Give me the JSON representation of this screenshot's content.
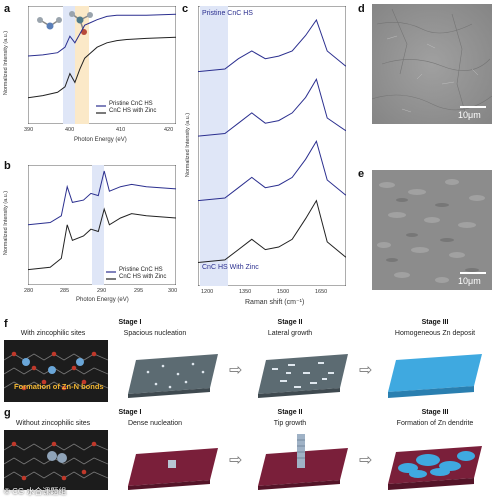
{
  "panels": {
    "a": {
      "letter": "a",
      "xlabel": "Photon Energy (eV)",
      "ylabel": "Normalized Intensity (a.u.)",
      "xticks": [
        "390",
        "400",
        "410",
        "420"
      ],
      "legend": [
        "Pristine CnC HS",
        "CnC HS with Zinc"
      ]
    },
    "b": {
      "letter": "b",
      "xlabel": "Photon Energy (eV)",
      "ylabel": "Normalized Intensity (a.u.)",
      "xticks": [
        "280",
        "285",
        "290",
        "295",
        "300"
      ],
      "legend": [
        "Pristine CnC HS",
        "CnC HS with Zinc"
      ]
    },
    "c": {
      "letter": "c",
      "xlabel": "Raman shift (cm⁻¹)",
      "ylabel": "Normalized Intensity (a.u.)",
      "xticks": [
        "1200",
        "1350",
        "1500",
        "1650"
      ],
      "top_label": "Pristine CnC HS",
      "bottom_label": "CnC HS With Zinc"
    },
    "d": {
      "letter": "d",
      "scale": "10μm"
    },
    "e": {
      "letter": "e",
      "scale": "10μm"
    }
  },
  "chart_data": [
    {
      "type": "line",
      "panel": "a",
      "xlabel": "Photon Energy (eV)",
      "ylabel": "Normalized Intensity (a.u.)",
      "xlim": [
        390,
        420
      ],
      "series": [
        {
          "name": "Pristine CnC HS",
          "x": [
            390,
            393,
            396,
            397.5,
            398.5,
            399.5,
            400.5,
            401.5,
            402.5,
            404,
            406,
            408,
            410,
            414,
            420
          ],
          "y": [
            0.6,
            0.61,
            0.63,
            0.68,
            0.78,
            0.72,
            0.8,
            0.88,
            0.9,
            0.93,
            0.96,
            0.97,
            0.97,
            0.97,
            0.98
          ]
        },
        {
          "name": "CnC HS with Zinc",
          "x": [
            390,
            393,
            396,
            397.5,
            398.5,
            399.5,
            400.5,
            401.5,
            402.5,
            404,
            406,
            408,
            410,
            414,
            420
          ],
          "y": [
            0.22,
            0.24,
            0.27,
            0.32,
            0.44,
            0.36,
            0.48,
            0.58,
            0.62,
            0.68,
            0.72,
            0.74,
            0.75,
            0.76,
            0.77
          ]
        }
      ]
    },
    {
      "type": "line",
      "panel": "b",
      "xlabel": "Photon Energy (eV)",
      "ylabel": "Normalized Intensity (a.u.)",
      "xlim": [
        280,
        300
      ],
      "series": [
        {
          "name": "Pristine CnC HS",
          "x": [
            280,
            283,
            284.5,
            285.3,
            286,
            287.5,
            288.5,
            289.5,
            290.3,
            291,
            292.5,
            294,
            296,
            300
          ],
          "y": [
            0.52,
            0.54,
            0.6,
            0.86,
            0.72,
            0.74,
            0.8,
            0.78,
            1.0,
            0.82,
            0.86,
            0.88,
            0.86,
            0.84
          ]
        },
        {
          "name": "CnC HS with Zinc",
          "x": [
            280,
            283,
            284.5,
            285.3,
            286,
            287.5,
            288.5,
            289.5,
            290.3,
            291,
            292.5,
            294,
            296,
            300
          ],
          "y": [
            0.12,
            0.14,
            0.22,
            0.52,
            0.38,
            0.42,
            0.48,
            0.46,
            0.66,
            0.52,
            0.58,
            0.62,
            0.6,
            0.58
          ]
        }
      ]
    },
    {
      "type": "line",
      "panel": "c",
      "xlabel": "Raman shift (cm⁻¹)",
      "ylabel": "Normalized Intensity (a.u.)",
      "xlim": [
        1150,
        1700
      ],
      "series": [
        {
          "name": "Pristine CnC HS",
          "x": [
            1150,
            1250,
            1300,
            1350,
            1400,
            1450,
            1500,
            1550,
            1590,
            1630,
            1700
          ],
          "y": [
            0.8,
            0.81,
            0.85,
            0.88,
            0.85,
            0.86,
            0.88,
            0.94,
            1.0,
            0.88,
            0.82
          ]
        },
        {
          "name": "",
          "x": [
            1150,
            1250,
            1300,
            1350,
            1400,
            1450,
            1500,
            1550,
            1590,
            1630,
            1700
          ],
          "y": [
            0.55,
            0.56,
            0.6,
            0.64,
            0.6,
            0.61,
            0.64,
            0.7,
            0.77,
            0.62,
            0.57
          ]
        },
        {
          "name": "",
          "x": [
            1150,
            1250,
            1300,
            1350,
            1400,
            1450,
            1500,
            1550,
            1590,
            1630,
            1700
          ],
          "y": [
            0.3,
            0.31,
            0.35,
            0.39,
            0.35,
            0.36,
            0.39,
            0.46,
            0.53,
            0.38,
            0.32
          ]
        },
        {
          "name": "CnC HS With Zinc",
          "x": [
            1150,
            1250,
            1300,
            1350,
            1400,
            1450,
            1500,
            1550,
            1590,
            1630,
            1700
          ],
          "y": [
            0.06,
            0.07,
            0.11,
            0.15,
            0.11,
            0.12,
            0.15,
            0.23,
            0.3,
            0.14,
            0.08
          ]
        }
      ]
    }
  ],
  "schematic": {
    "f": {
      "letter": "f",
      "side_label": "With zincophilic sites",
      "bond_label": "Formation of Zn-N bonds",
      "stages": [
        {
          "title": "Stage I",
          "sub": "Spacious nucleation"
        },
        {
          "title": "Stage II",
          "sub": "Lateral growth"
        },
        {
          "title": "Stage III",
          "sub": "Homogeneous Zn deposit"
        }
      ]
    },
    "g": {
      "letter": "g",
      "side_label": "Without zincophilic sites",
      "stages": [
        {
          "title": "Stage I",
          "sub": "Dense nucleation"
        },
        {
          "title": "Stage II",
          "sub": "Tip growth"
        },
        {
          "title": "Stage III",
          "sub": "Formation of Zn dendrite"
        }
      ]
    }
  },
  "colors": {
    "pristine": "#2b2f8f",
    "zinc": "#222222",
    "blue_band": "#dfe6f7",
    "orange_band": "#fbe9c8",
    "substrate_f": "#5c6b72",
    "substrate_g": "#7a1f3a",
    "zn_layer": "#3fa9e0"
  },
  "watermark": "© CG 水合课题组"
}
